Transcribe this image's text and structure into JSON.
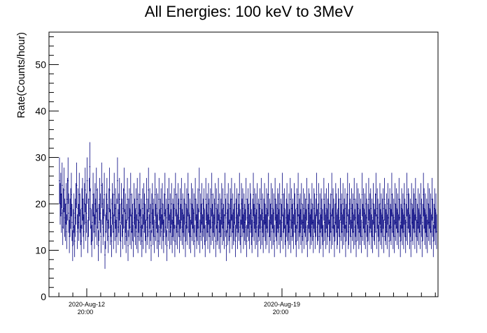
{
  "chart_data": {
    "type": "scatter",
    "title": "All Energies:  100 keV to 3MeV",
    "ylabel": "Rate(Counts/hour)",
    "xlabel": "",
    "ylim": [
      0,
      57
    ],
    "yticks": [
      0,
      10,
      20,
      30,
      40,
      50
    ],
    "x_range_days_label": [
      "2020-Aug-11 07:00",
      "2020-Aug-25 00:00"
    ],
    "x_tick_labels": [
      {
        "date": "2020-Aug-12",
        "time": "20:00"
      },
      {
        "date": "2020-Aug-19",
        "time": "20:00"
      }
    ],
    "grid": false,
    "legend": "none",
    "colors": {
      "data": "#00007f",
      "axis": "#000000",
      "background": "#ffffff"
    },
    "series": [
      {
        "x_start": "2020-Aug-11 08:00",
        "x_step_hours": 1,
        "values": [
          25,
          20,
          22,
          18,
          24,
          15,
          19,
          23,
          17,
          16,
          20,
          14,
          21,
          25,
          18,
          13,
          17,
          19,
          22,
          16,
          11,
          15,
          18,
          12,
          17,
          20,
          24,
          14,
          19,
          16,
          22,
          18,
          15,
          12,
          19,
          21,
          17,
          14,
          20,
          23,
          16,
          18,
          25,
          13,
          17,
          21,
          28,
          19,
          15,
          12,
          16,
          22,
          18,
          14,
          20,
          17,
          23,
          15,
          19,
          11,
          16,
          21,
          18,
          13,
          24,
          20,
          15,
          17,
          22,
          9,
          14,
          18,
          21,
          16,
          13,
          19,
          23,
          15,
          17,
          12,
          20,
          18,
          14,
          22,
          16,
          19,
          13,
          17,
          25,
          15,
          18,
          21,
          16,
          12,
          20,
          17,
          14,
          19,
          23,
          15,
          18,
          13,
          16,
          21,
          11,
          17,
          19,
          15,
          22,
          14,
          18,
          16,
          12,
          20,
          17,
          15,
          19,
          14,
          21,
          13,
          18,
          16,
          22,
          15,
          17,
          12,
          19,
          14,
          20,
          18,
          16,
          13,
          21,
          15,
          17,
          23,
          14,
          19,
          16,
          11,
          18,
          20,
          15,
          17,
          13,
          22,
          16,
          19,
          14,
          18,
          12,
          21,
          15,
          17,
          19,
          14,
          20,
          16,
          13,
          18,
          22,
          15,
          17,
          11,
          19,
          16,
          21,
          14,
          18,
          15,
          20,
          13,
          17,
          16,
          19,
          12,
          22,
          15,
          18,
          14,
          20,
          17,
          13,
          19,
          16,
          21,
          15,
          18,
          14,
          17,
          20,
          12,
          16,
          19,
          15,
          22,
          18,
          14,
          17,
          13,
          20,
          16,
          19,
          15,
          18,
          12,
          21,
          17,
          14,
          16,
          19,
          15,
          23,
          13,
          18,
          16,
          20,
          14,
          17,
          19,
          15,
          12,
          21,
          16,
          18,
          14,
          20,
          17,
          13,
          19,
          15,
          22,
          16,
          18,
          14,
          17,
          20,
          12,
          19,
          15,
          16,
          21,
          14,
          18,
          13,
          17,
          20,
          15,
          19,
          16,
          14,
          22,
          17,
          11,
          18,
          15,
          20,
          16,
          13,
          19,
          17,
          21,
          14,
          18,
          15,
          16,
          20,
          12,
          17,
          19,
          14,
          18,
          16,
          22,
          15,
          13,
          20,
          17,
          19,
          14,
          18,
          16,
          15,
          21,
          12,
          17,
          19,
          16,
          14,
          20,
          18,
          15,
          13,
          17,
          22,
          16,
          19,
          14,
          18,
          15,
          20,
          12,
          17,
          16,
          19,
          14,
          21,
          15,
          18,
          13,
          17,
          20,
          16,
          14,
          19,
          15,
          18,
          22,
          13,
          17,
          16,
          20,
          14,
          19,
          15,
          18,
          12,
          21,
          17,
          16,
          14,
          19,
          18,
          15,
          20,
          13,
          17,
          16,
          22,
          14,
          18,
          19,
          15,
          12,
          17,
          20,
          16,
          14,
          18,
          15,
          21,
          13,
          19,
          16,
          17,
          14,
          20,
          18,
          15,
          12,
          19,
          16,
          22,
          14,
          17,
          18,
          15,
          20,
          13,
          16,
          19,
          14,
          18,
          17,
          15,
          21,
          12,
          16,
          19,
          18,
          14,
          17,
          15,
          20,
          16,
          13,
          19,
          18,
          14,
          17,
          22,
          15,
          16,
          20,
          13,
          18,
          14,
          19,
          17,
          15,
          12,
          21,
          16,
          18,
          14,
          19,
          15,
          17,
          20,
          13,
          16,
          18,
          14,
          22,
          15,
          19,
          17,
          12,
          16,
          20,
          18,
          14,
          15,
          19,
          17,
          13,
          21,
          16,
          18,
          14,
          20,
          15,
          17,
          19,
          12,
          16,
          18,
          22,
          14,
          15,
          20,
          17,
          13,
          19,
          16,
          18,
          14,
          21,
          15,
          17,
          12,
          20,
          16,
          19,
          14,
          18,
          15,
          17,
          13,
          22,
          16,
          19,
          15,
          18,
          14,
          20,
          17,
          12,
          16,
          21,
          15,
          18,
          19,
          14,
          17,
          13,
          20,
          16,
          15,
          18,
          22,
          14,
          19,
          17,
          12,
          16,
          20,
          15,
          18,
          14,
          17,
          19,
          13,
          21,
          16,
          15,
          18,
          14,
          20,
          17,
          12,
          19,
          16,
          15,
          22,
          18,
          14,
          17,
          13,
          20,
          16,
          19,
          15,
          18,
          14,
          21,
          17,
          12,
          16,
          19,
          15,
          18,
          14,
          20,
          17,
          13,
          16,
          22,
          15,
          19,
          18,
          14,
          17,
          12,
          20,
          16,
          15,
          19,
          18,
          14,
          21,
          17,
          13,
          16,
          19,
          15,
          18,
          14,
          20,
          17,
          12,
          16,
          22,
          19,
          15,
          18,
          14,
          17,
          13,
          20,
          16,
          19,
          15,
          18,
          14,
          21,
          17,
          12,
          16,
          19,
          15,
          18,
          14
        ]
      }
    ]
  }
}
